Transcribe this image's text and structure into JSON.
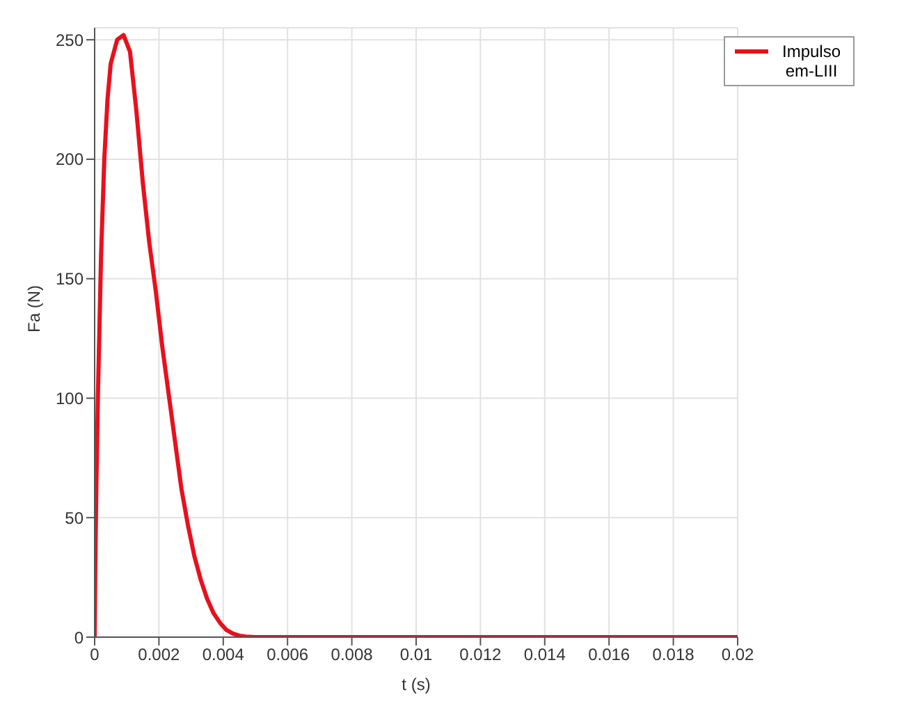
{
  "chart_data": {
    "type": "line",
    "xlabel": "t (s)",
    "ylabel": "Fa (N)",
    "x": [
      0,
      2e-05,
      5e-05,
      0.0001,
      0.0002,
      0.0003,
      0.0004,
      0.0005,
      0.0007,
      0.0009,
      0.0011,
      0.0013,
      0.0015,
      0.0017,
      0.0019,
      0.0021,
      0.0023,
      0.0025,
      0.0027,
      0.0029,
      0.0031,
      0.0033,
      0.0035,
      0.0037,
      0.0039,
      0.0041,
      0.0043,
      0.0045,
      0.0047,
      0.005,
      0.02
    ],
    "series": [
      {
        "name": "Impulso em-LIII",
        "color": "#e8101c",
        "values": [
          0,
          30,
          60,
          100,
          160,
          200,
          225,
          240,
          250,
          252,
          245,
          220,
          190,
          165,
          145,
          122,
          102,
          82,
          62,
          47,
          34,
          24,
          16,
          10,
          6,
          3,
          1.5,
          0.6,
          0.2,
          0,
          0
        ]
      }
    ],
    "xlim": [
      0,
      0.02
    ],
    "xticks": [
      0,
      0.002,
      0.004,
      0.006,
      0.008,
      0.01,
      0.012,
      0.014,
      0.016,
      0.018,
      0.02
    ],
    "ylim": [
      0,
      255
    ],
    "yticks": [
      0,
      50,
      100,
      150,
      200,
      250
    ],
    "grid": true,
    "legend": "top right",
    "marker": "none",
    "line_style": "solid"
  }
}
